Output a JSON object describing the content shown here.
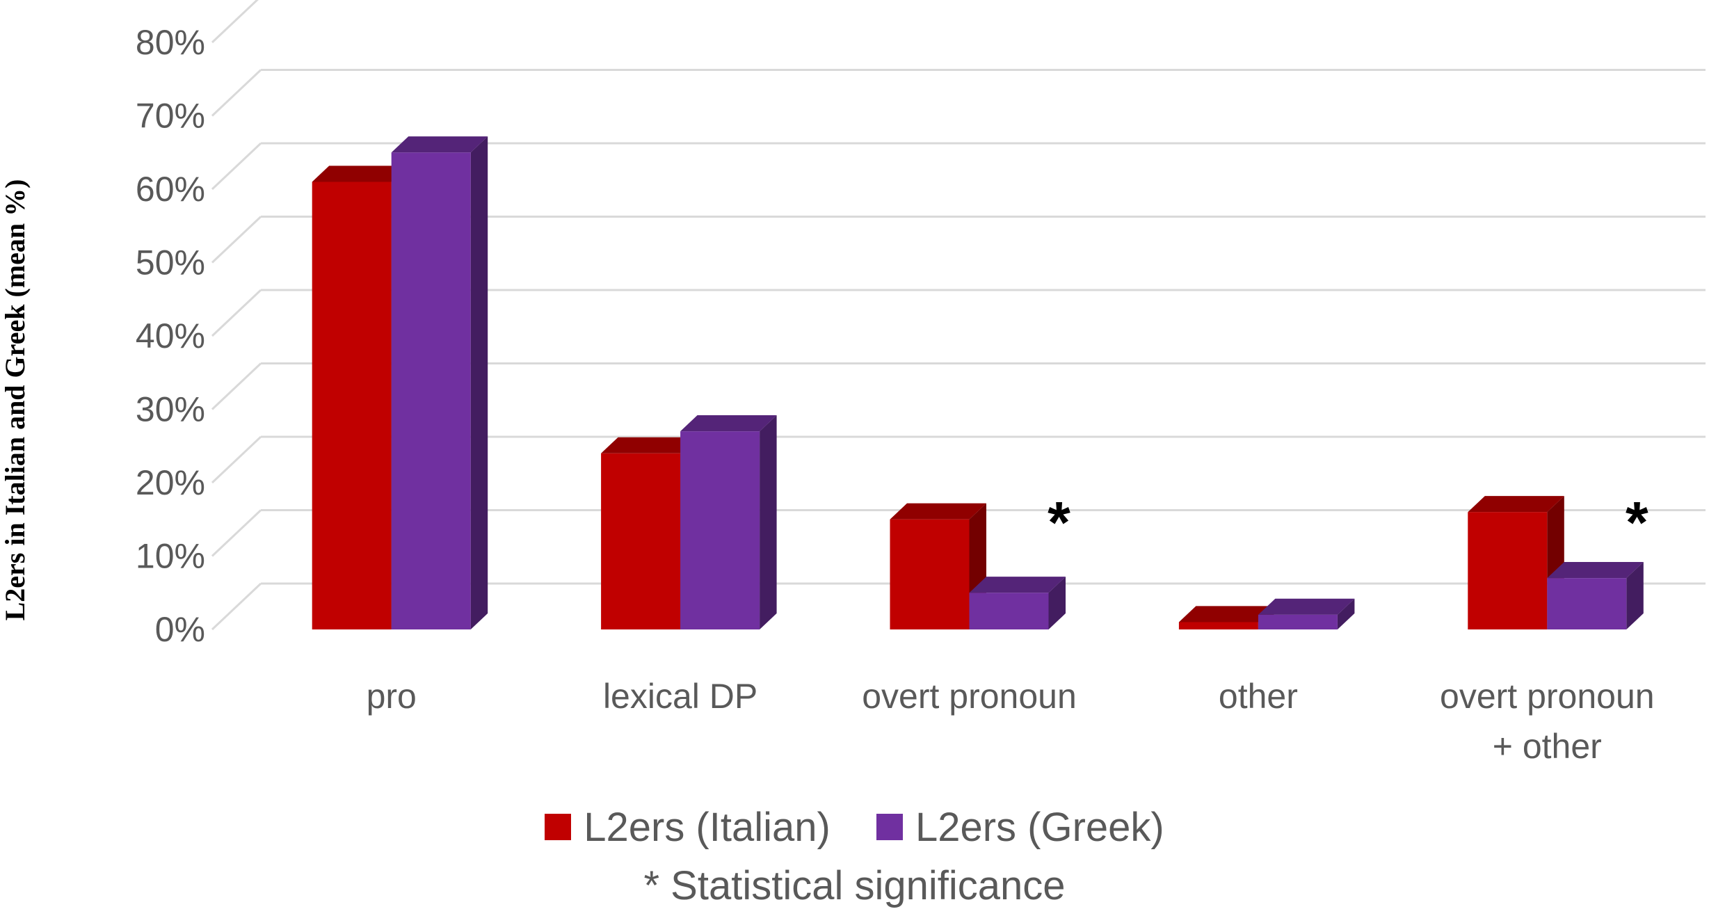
{
  "chart_data": {
    "type": "bar",
    "style": "3d-clustered-column",
    "ylabel": "L2ers in Italian and Greek (mean %)",
    "ylim": [
      0,
      80
    ],
    "y_ticks": [
      "0%",
      "10%",
      "20%",
      "30%",
      "40%",
      "50%",
      "60%",
      "70%",
      "80%"
    ],
    "grid": true,
    "categories": [
      [
        "pro"
      ],
      [
        "lexical DP"
      ],
      [
        "overt pronoun"
      ],
      [
        "other"
      ],
      [
        "overt pronoun",
        "+ other"
      ]
    ],
    "series": [
      {
        "name": "L2ers (Italian)",
        "color": "#C00000",
        "values": [
          61,
          24,
          15,
          1,
          16
        ]
      },
      {
        "name": "L2ers (Greek)",
        "color": "#7030A0",
        "values": [
          65,
          27,
          5,
          2,
          7
        ]
      }
    ],
    "significance_marker": "*",
    "significant_categories": [
      2,
      4
    ],
    "legend_position": "bottom"
  },
  "legend": {
    "italian_label": "L2ers (Italian)",
    "greek_label": "L2ers (Greek)",
    "note": "* Statistical significance"
  }
}
